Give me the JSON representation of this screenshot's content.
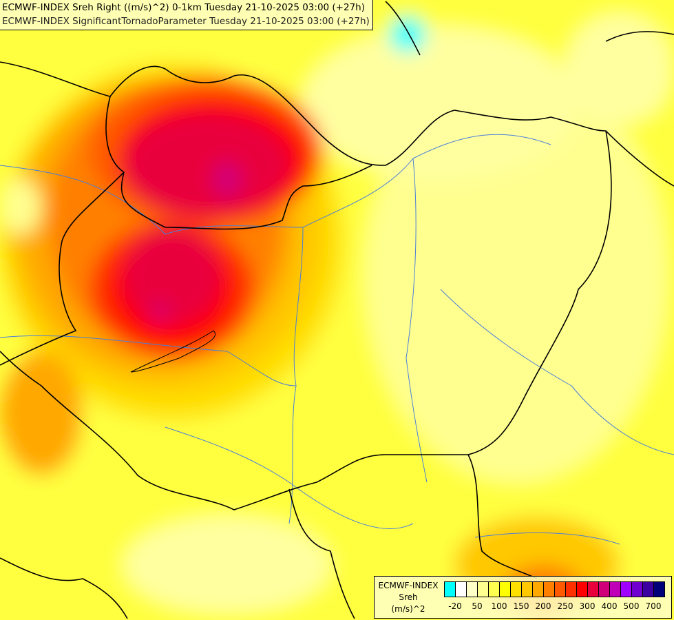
{
  "title_lines": [
    "ECMWF-INDEX Sreh Right ((m/s)^2) 0-1km Tuesday 21-10-2025 03:00 (+27h)",
    "ECMWF-INDEX SignificantTornadoParameter Tuesday 21-10-2025 03:00 (+27h)"
  ],
  "legend": {
    "name": "ECMWF-INDEX",
    "variable": "Sreh",
    "unit": "(m/s)^2",
    "colors": [
      "#00ffff",
      "#ffffff",
      "#ffffc8",
      "#ffff90",
      "#ffff50",
      "#ffff00",
      "#ffe000",
      "#ffc800",
      "#ffa800",
      "#ff8000",
      "#ff5a00",
      "#ff3000",
      "#ff0000",
      "#e8003c",
      "#d0007a",
      "#c000b8",
      "#a000ff",
      "#7000d0",
      "#3c00a0",
      "#000078"
    ],
    "tick_labels": [
      "-20",
      "50",
      "100",
      "150",
      "200",
      "250",
      "300",
      "400",
      "500",
      "700"
    ]
  },
  "field_colors": {
    "background": "#ffff40",
    "max": "#d0007a"
  }
}
